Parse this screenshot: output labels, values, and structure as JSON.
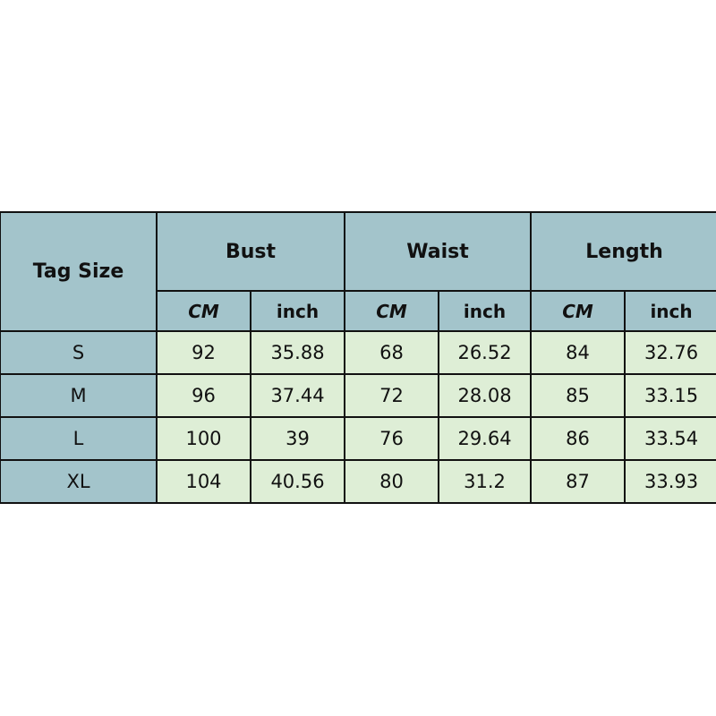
{
  "table": {
    "tag_header": "Tag Size",
    "groups": [
      "Bust",
      "Waist",
      "Length"
    ],
    "units": [
      "CM",
      "inch",
      "CM",
      "inch",
      "CM",
      "inch"
    ],
    "rows": [
      {
        "size": "S",
        "values": [
          "92",
          "35.88",
          "68",
          "26.52",
          "84",
          "32.76"
        ]
      },
      {
        "size": "M",
        "values": [
          "96",
          "37.44",
          "72",
          "28.08",
          "85",
          "33.15"
        ]
      },
      {
        "size": "L",
        "values": [
          "100",
          "39",
          "76",
          "29.64",
          "86",
          "33.54"
        ]
      },
      {
        "size": "XL",
        "values": [
          "104",
          "40.56",
          "80",
          "31.2",
          "87",
          "33.93"
        ]
      }
    ]
  },
  "colors": {
    "header": "#a3c4cb",
    "cells": "#deeed6"
  }
}
